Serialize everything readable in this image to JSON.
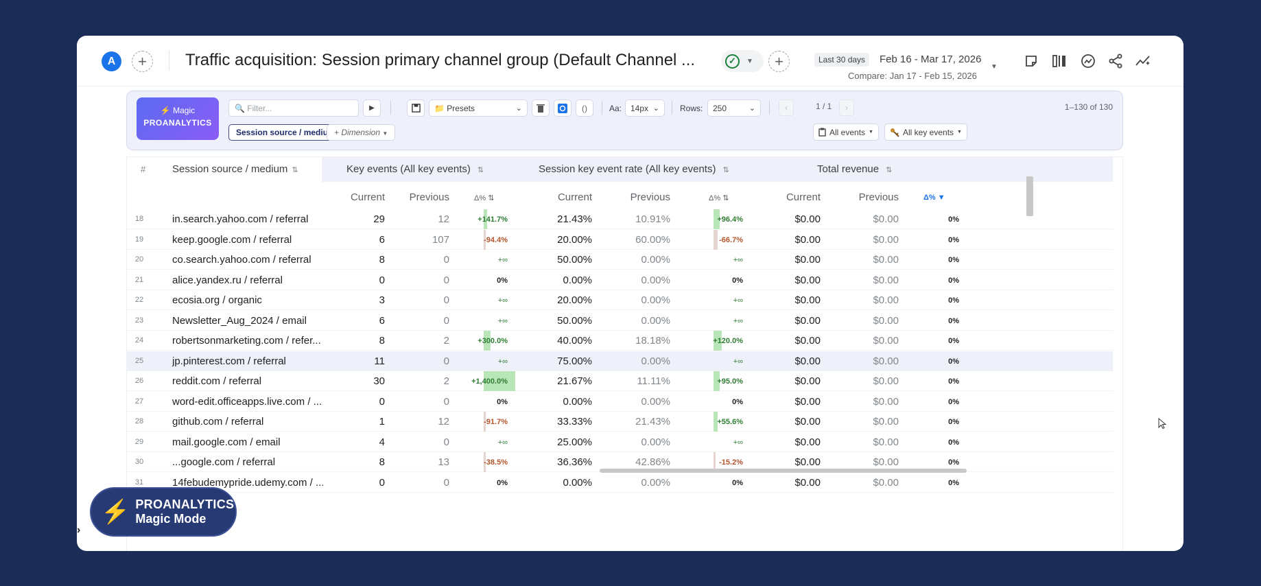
{
  "header": {
    "avatar_initial": "A",
    "title": "Traffic acquisition: Session primary channel group (Default Channel ...",
    "date_chip": "Last 30 days",
    "date_range": "Feb 16 - Mar 17, 2026",
    "compare": "Compare: Jan 17 - Feb 15, 2026",
    "icons": [
      "note-icon",
      "compare-columns-icon",
      "insights-icon",
      "share-icon",
      "sparkline-icon"
    ]
  },
  "toolbar": {
    "logo_line1": "⚡ Magic",
    "logo_line2": "PROANALYTICS",
    "filter_placeholder": "🔍 Filter...",
    "presets_label": "📁 Presets",
    "font_label": "Aa:",
    "font_value": "14px",
    "rows_label": "Rows:",
    "rows_value": "250",
    "page_indicator": "1 / 1",
    "count": "1–130 of 130",
    "dimension": "Session source / medium",
    "add_dimension": "+ Dimension",
    "all_events": "All events",
    "all_key_events": "All key events"
  },
  "table": {
    "col_num": "#",
    "col_source": "Session source / medium",
    "groups": [
      "Key events (All key events)",
      "Session key event rate (All key events)",
      "Total revenue"
    ],
    "sub_current": "Current",
    "sub_previous": "Previous",
    "sub_delta": "Δ%",
    "rows": [
      {
        "n": "18",
        "src": "in.search.yahoo.com / referral",
        "kc": "29",
        "kp": "12",
        "kd": "+141.7%",
        "kdt": "pos",
        "kb": 0.1,
        "rc": "21.43%",
        "rp": "10.91%",
        "rd": "+96.4%",
        "rdt": "pos",
        "rb": 0.2,
        "vc": "$0.00",
        "vp": "$0.00",
        "vd": "0%"
      },
      {
        "n": "19",
        "src": "keep.google.com / referral",
        "kc": "6",
        "kp": "107",
        "kd": "-94.4%",
        "kdt": "neg",
        "kb": 0.07,
        "rc": "20.00%",
        "rp": "60.00%",
        "rd": "-66.7%",
        "rdt": "neg",
        "rb": 0.14,
        "vc": "$0.00",
        "vp": "$0.00",
        "vd": "0%"
      },
      {
        "n": "20",
        "src": "co.search.yahoo.com / referral",
        "kc": "8",
        "kp": "0",
        "kd": "+∞",
        "kdt": "inf",
        "kb": 0,
        "rc": "50.00%",
        "rp": "0.00%",
        "rd": "+∞",
        "rdt": "inf",
        "rb": 0,
        "vc": "$0.00",
        "vp": "$0.00",
        "vd": "0%"
      },
      {
        "n": "21",
        "src": "alice.yandex.ru / referral",
        "kc": "0",
        "kp": "0",
        "kd": "0%",
        "kdt": "zero",
        "kb": 0,
        "rc": "0.00%",
        "rp": "0.00%",
        "rd": "0%",
        "rdt": "zero",
        "rb": 0,
        "vc": "$0.00",
        "vp": "$0.00",
        "vd": "0%"
      },
      {
        "n": "22",
        "src": "ecosia.org / organic",
        "kc": "3",
        "kp": "0",
        "kd": "+∞",
        "kdt": "inf",
        "kb": 0,
        "rc": "20.00%",
        "rp": "0.00%",
        "rd": "+∞",
        "rdt": "inf",
        "rb": 0,
        "vc": "$0.00",
        "vp": "$0.00",
        "vd": "0%"
      },
      {
        "n": "23",
        "src": "Newsletter_Aug_2024 / email",
        "kc": "6",
        "kp": "0",
        "kd": "+∞",
        "kdt": "inf",
        "kb": 0,
        "rc": "50.00%",
        "rp": "0.00%",
        "rd": "+∞",
        "rdt": "inf",
        "rb": 0,
        "vc": "$0.00",
        "vp": "$0.00",
        "vd": "0%"
      },
      {
        "n": "24",
        "src": "robertsonmarketing.com / refer...",
        "kc": "8",
        "kp": "2",
        "kd": "+300.0%",
        "kdt": "pos",
        "kb": 0.21,
        "rc": "40.00%",
        "rp": "18.18%",
        "rd": "+120.0%",
        "rdt": "pos",
        "rb": 0.25,
        "vc": "$0.00",
        "vp": "$0.00",
        "vd": "0%"
      },
      {
        "n": "25",
        "src": "jp.pinterest.com / referral",
        "kc": "11",
        "kp": "0",
        "kd": "+∞",
        "kdt": "inf",
        "kb": 0,
        "rc": "75.00%",
        "rp": "0.00%",
        "rd": "+∞",
        "rdt": "inf",
        "rb": 0,
        "vc": "$0.00",
        "vp": "$0.00",
        "vd": "0%",
        "hl": true
      },
      {
        "n": "26",
        "src": "reddit.com / referral",
        "kc": "30",
        "kp": "2",
        "kd": "+1,400.0%",
        "kdt": "pos",
        "kb": 1.0,
        "rc": "21.67%",
        "rp": "11.11%",
        "rd": "+95.0%",
        "rdt": "pos",
        "rb": 0.2,
        "vc": "$0.00",
        "vp": "$0.00",
        "vd": "0%"
      },
      {
        "n": "27",
        "src": "word-edit.officeapps.live.com / ...",
        "kc": "0",
        "kp": "0",
        "kd": "0%",
        "kdt": "zero",
        "kb": 0,
        "rc": "0.00%",
        "rp": "0.00%",
        "rd": "0%",
        "rdt": "zero",
        "rb": 0,
        "vc": "$0.00",
        "vp": "$0.00",
        "vd": "0%"
      },
      {
        "n": "28",
        "src": "github.com / referral",
        "kc": "1",
        "kp": "12",
        "kd": "-91.7%",
        "kdt": "neg",
        "kb": 0.07,
        "rc": "33.33%",
        "rp": "21.43%",
        "rd": "+55.6%",
        "rdt": "pos",
        "rb": 0.12,
        "vc": "$0.00",
        "vp": "$0.00",
        "vd": "0%"
      },
      {
        "n": "29",
        "src": "mail.google.com / email",
        "kc": "4",
        "kp": "0",
        "kd": "+∞",
        "kdt": "inf",
        "kb": 0,
        "rc": "25.00%",
        "rp": "0.00%",
        "rd": "+∞",
        "rdt": "inf",
        "rb": 0,
        "vc": "$0.00",
        "vp": "$0.00",
        "vd": "0%"
      },
      {
        "n": "30",
        "src": "...google.com / referral",
        "kc": "8",
        "kp": "13",
        "kd": "-38.5%",
        "kdt": "neg",
        "kb": 0.02,
        "rc": "36.36%",
        "rp": "42.86%",
        "rd": "-15.2%",
        "rdt": "neg",
        "rb": 0.03,
        "vc": "$0.00",
        "vp": "$0.00",
        "vd": "0%"
      },
      {
        "n": "31",
        "src": "14febudemypride.udemy.com / ...",
        "kc": "0",
        "kp": "0",
        "kd": "0%",
        "kdt": "zero",
        "kb": 0,
        "rc": "0.00%",
        "rp": "0.00%",
        "rd": "0%",
        "rdt": "zero",
        "rb": 0,
        "vc": "$0.00",
        "vp": "$0.00",
        "vd": "0%"
      }
    ]
  },
  "badge": {
    "line1": "PROANALYTICS",
    "line2": "Magic Mode"
  },
  "colors": {
    "background": "#1b2c57",
    "pos_bar": "#b8e6b8",
    "neg_bar": "#e6d4cf",
    "accent": "#1a73e8"
  }
}
